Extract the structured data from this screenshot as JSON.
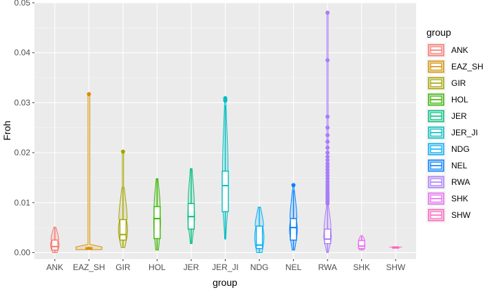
{
  "chart_data": {
    "type": "violin-box",
    "title": "",
    "xlabel": "group",
    "ylabel": "Froh",
    "ylim": [
      -0.0013,
      0.05
    ],
    "yticks": [
      0.0,
      0.01,
      0.02,
      0.03,
      0.04,
      0.05
    ],
    "ytick_labels": [
      "0.00",
      "0.01",
      "0.02",
      "0.03",
      "0.04",
      "0.05"
    ],
    "grid": true,
    "legend": {
      "title": "group",
      "position": "right"
    },
    "categories": [
      "ANK",
      "EAZ_SH",
      "GIR",
      "HOL",
      "JER",
      "JER_JI",
      "NDG",
      "NEL",
      "RWA",
      "SHK",
      "SHW"
    ],
    "groups": [
      {
        "name": "ANK",
        "color": "#F8766D",
        "min": 0.0,
        "q1": 0.0005,
        "median": 0.0012,
        "q3": 0.0025,
        "max": 0.0051,
        "outliers": [],
        "violin_max_half_width": 0.28
      },
      {
        "name": "EAZ_SH",
        "color": "#D89000",
        "min": 0.0006,
        "q1": 0.0007,
        "median": 0.0008,
        "q3": 0.001,
        "max": 0.0012,
        "outliers": [
          0.0317
        ],
        "violin_max_half_width": 1.0
      },
      {
        "name": "GIR",
        "color": "#A3A500",
        "min": 0.001,
        "q1": 0.0025,
        "median": 0.0036,
        "q3": 0.0066,
        "max": 0.0131,
        "outliers": [
          0.0202
        ],
        "violin_max_half_width": 0.3
      },
      {
        "name": "HOL",
        "color": "#39B600",
        "min": 0.0005,
        "q1": 0.0028,
        "median": 0.0068,
        "q3": 0.0092,
        "max": 0.0148,
        "outliers": [],
        "violin_max_half_width": 0.22
      },
      {
        "name": "JER",
        "color": "#00BF7D",
        "min": 0.0018,
        "q1": 0.0047,
        "median": 0.0072,
        "q3": 0.0098,
        "max": 0.0168,
        "outliers": [],
        "violin_max_half_width": 0.22
      },
      {
        "name": "JER_JI",
        "color": "#00BFC4",
        "min": 0.0027,
        "q1": 0.0082,
        "median": 0.0134,
        "q3": 0.0163,
        "max": 0.0295,
        "outliers": [
          0.0304,
          0.0307,
          0.0309
        ],
        "violin_max_half_width": 0.2
      },
      {
        "name": "NDG",
        "color": "#00B0F6",
        "min": 0.0,
        "q1": 0.0008,
        "median": 0.0015,
        "q3": 0.0053,
        "max": 0.0091,
        "outliers": [],
        "violin_max_half_width": 0.3
      },
      {
        "name": "NEL",
        "color": "#0080FF",
        "min": 0.0005,
        "q1": 0.0025,
        "median": 0.005,
        "q3": 0.0068,
        "max": 0.0125,
        "outliers": [
          0.0135
        ],
        "violin_max_half_width": 0.25
      },
      {
        "name": "RWA",
        "color": "#A97CF8",
        "min": 0.0,
        "q1": 0.0018,
        "median": 0.0027,
        "q3": 0.0047,
        "max": 0.0094,
        "outliers": [
          0.0098,
          0.0102,
          0.0106,
          0.011,
          0.0114,
          0.0118,
          0.0122,
          0.0127,
          0.0132,
          0.0137,
          0.0142,
          0.0148,
          0.0154,
          0.016,
          0.0166,
          0.0172,
          0.0178,
          0.0185,
          0.0192,
          0.02,
          0.021,
          0.0222,
          0.0235,
          0.025,
          0.0272,
          0.0385,
          0.048
        ],
        "violin_max_half_width": 0.25
      },
      {
        "name": "SHK",
        "color": "#E76BF3",
        "min": 0.0005,
        "q1": 0.0008,
        "median": 0.0013,
        "q3": 0.0024,
        "max": 0.0034,
        "outliers": [],
        "violin_max_half_width": 0.22
      },
      {
        "name": "SHW",
        "color": "#FF62BC",
        "min": 0.0011,
        "q1": 0.0011,
        "median": 0.0011,
        "q3": 0.0011,
        "max": 0.0011,
        "outliers": [],
        "violin_max_half_width": 0.4
      }
    ]
  }
}
